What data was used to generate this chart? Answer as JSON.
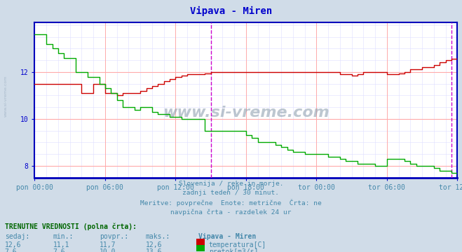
{
  "title": "Vipava - Miren",
  "title_color": "#0000cc",
  "bg_color": "#d0dce8",
  "plot_bg_color": "#ffffff",
  "grid_color_major": "#ffaaaa",
  "grid_color_minor": "#ddddff",
  "border_color": "#0000cc",
  "tick_color": "#0000cc",
  "ylim": [
    7.5,
    14.1
  ],
  "yticks": [
    8,
    10,
    12
  ],
  "xtick_labels": [
    "pon 00:00",
    "pon 06:00",
    "pon 12:00",
    "pon 18:00",
    "tor 00:00",
    "tor 06:00",
    "tor 12:00"
  ],
  "vline_color": "#cc00cc",
  "subtitle_lines": [
    "Slovenija / reke in morje.",
    "zadnji teden / 30 minut.",
    "Meritve: povprečne  Enote: metrične  Črta: ne",
    "navpična črta - razdelek 24 ur"
  ],
  "subtitle_color": "#4488aa",
  "footer_header": "TRENUTNE VREDNOSTI (polna črta):",
  "footer_header_color": "#006600",
  "footer_cols": [
    "sedaj:",
    "min.:",
    "povpr.:",
    "maks.:",
    "Vipava - Miren"
  ],
  "footer_row1": [
    "12,6",
    "11,1",
    "11,7",
    "12,6"
  ],
  "footer_row2": [
    "7,6",
    "7,6",
    "10,0",
    "13,6"
  ],
  "footer_legend1": "temperatura[C]",
  "footer_legend2": "pretok[m3/s]",
  "temp_color": "#cc0000",
  "flow_color": "#00aa00",
  "watermark_text": "www.si-vreme.com",
  "watermark_color": "#8899aa",
  "sidewatermark_color": "#aabbcc",
  "data_color": "#4488aa"
}
